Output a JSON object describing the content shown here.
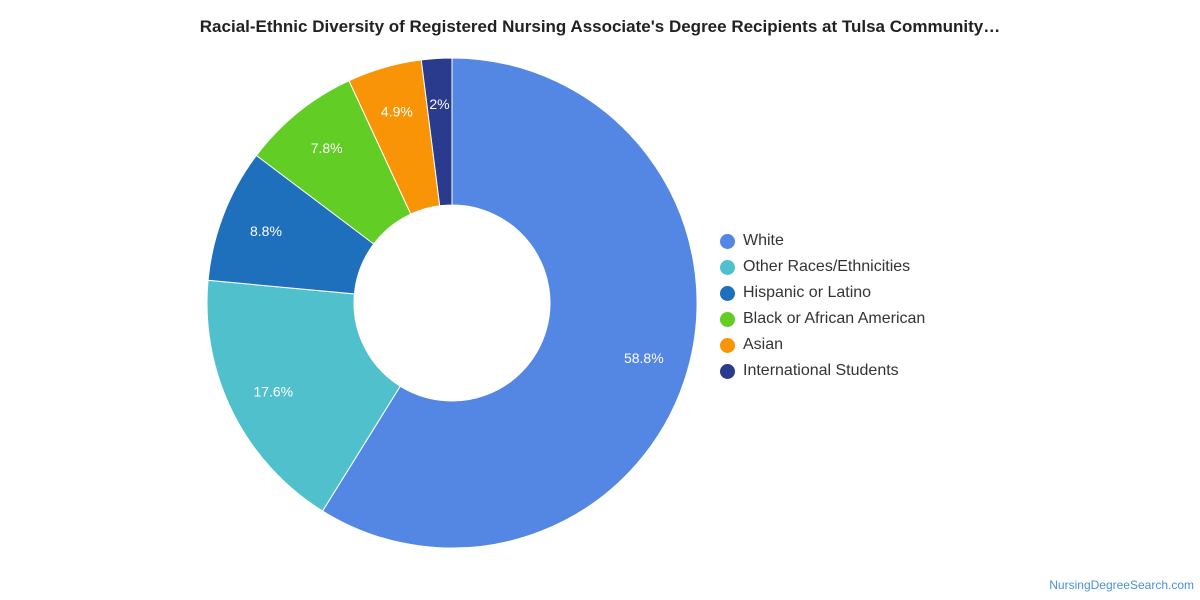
{
  "chart_data": {
    "type": "pie",
    "title": "Racial-Ethnic Diversity of Registered Nursing Associate's Degree Recipients at Tulsa Community…",
    "donut": true,
    "legend_position": "right",
    "slices": [
      {
        "name": "White",
        "value": 58.8,
        "label": "58.8%",
        "color": "#5486e3"
      },
      {
        "name": "Other Races/Ethnicities",
        "value": 17.6,
        "label": "17.6%",
        "color": "#50c0cc"
      },
      {
        "name": "Hispanic or Latino",
        "value": 8.8,
        "label": "8.8%",
        "color": "#1e6fbc"
      },
      {
        "name": "Black or African American",
        "value": 7.8,
        "label": "7.8%",
        "color": "#62cd24"
      },
      {
        "name": "Asian",
        "value": 4.9,
        "label": "4.9%",
        "color": "#f89406"
      },
      {
        "name": "International Students",
        "value": 2.0,
        "label": "2%",
        "color": "#2a3a8c"
      }
    ]
  },
  "footer": {
    "source": "NursingDegreeSearch.com"
  }
}
